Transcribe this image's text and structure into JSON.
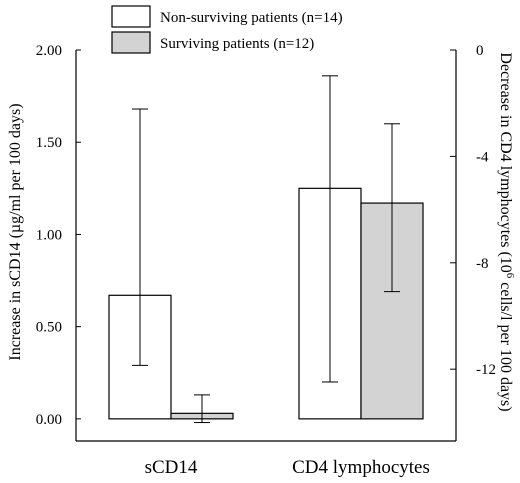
{
  "chart_data": {
    "type": "bar",
    "categories": [
      "sCD14",
      "CD4 lymphocytes"
    ],
    "series": [
      {
        "name": "Non-surviving patients (n=14)",
        "color": "#ffffff",
        "values": [
          0.67,
          1.25
        ],
        "err_low": [
          0.29,
          0.2
        ],
        "err_high": [
          1.68,
          1.86
        ]
      },
      {
        "name": "Surviving patients (n=12)",
        "color": "#d3d3d3",
        "values": [
          0.03,
          1.17
        ],
        "err_low": [
          -0.02,
          0.69
        ],
        "err_high": [
          0.13,
          1.6
        ]
      }
    ],
    "ylabel": "Increase in sCD14 (µg/ml per 100 days)",
    "ylim": [
      -0.12,
      2.0
    ],
    "yticks": [
      "0.00",
      "0.50",
      "1.00",
      "1.50",
      "2.00"
    ],
    "y2label_pre": "Decrease in CD4 lymphocytes (10",
    "y2label_sup": "6",
    "y2label_post": " cells/l per 100 days)",
    "y2ticks": [
      {
        "value": 0,
        "label": "0"
      },
      {
        "value": -4,
        "label": "-4"
      },
      {
        "value": -8,
        "label": "-8"
      },
      {
        "value": -12,
        "label": "-12"
      }
    ],
    "y2lim": [
      -14.7,
      0
    ],
    "legend": "top-center"
  }
}
